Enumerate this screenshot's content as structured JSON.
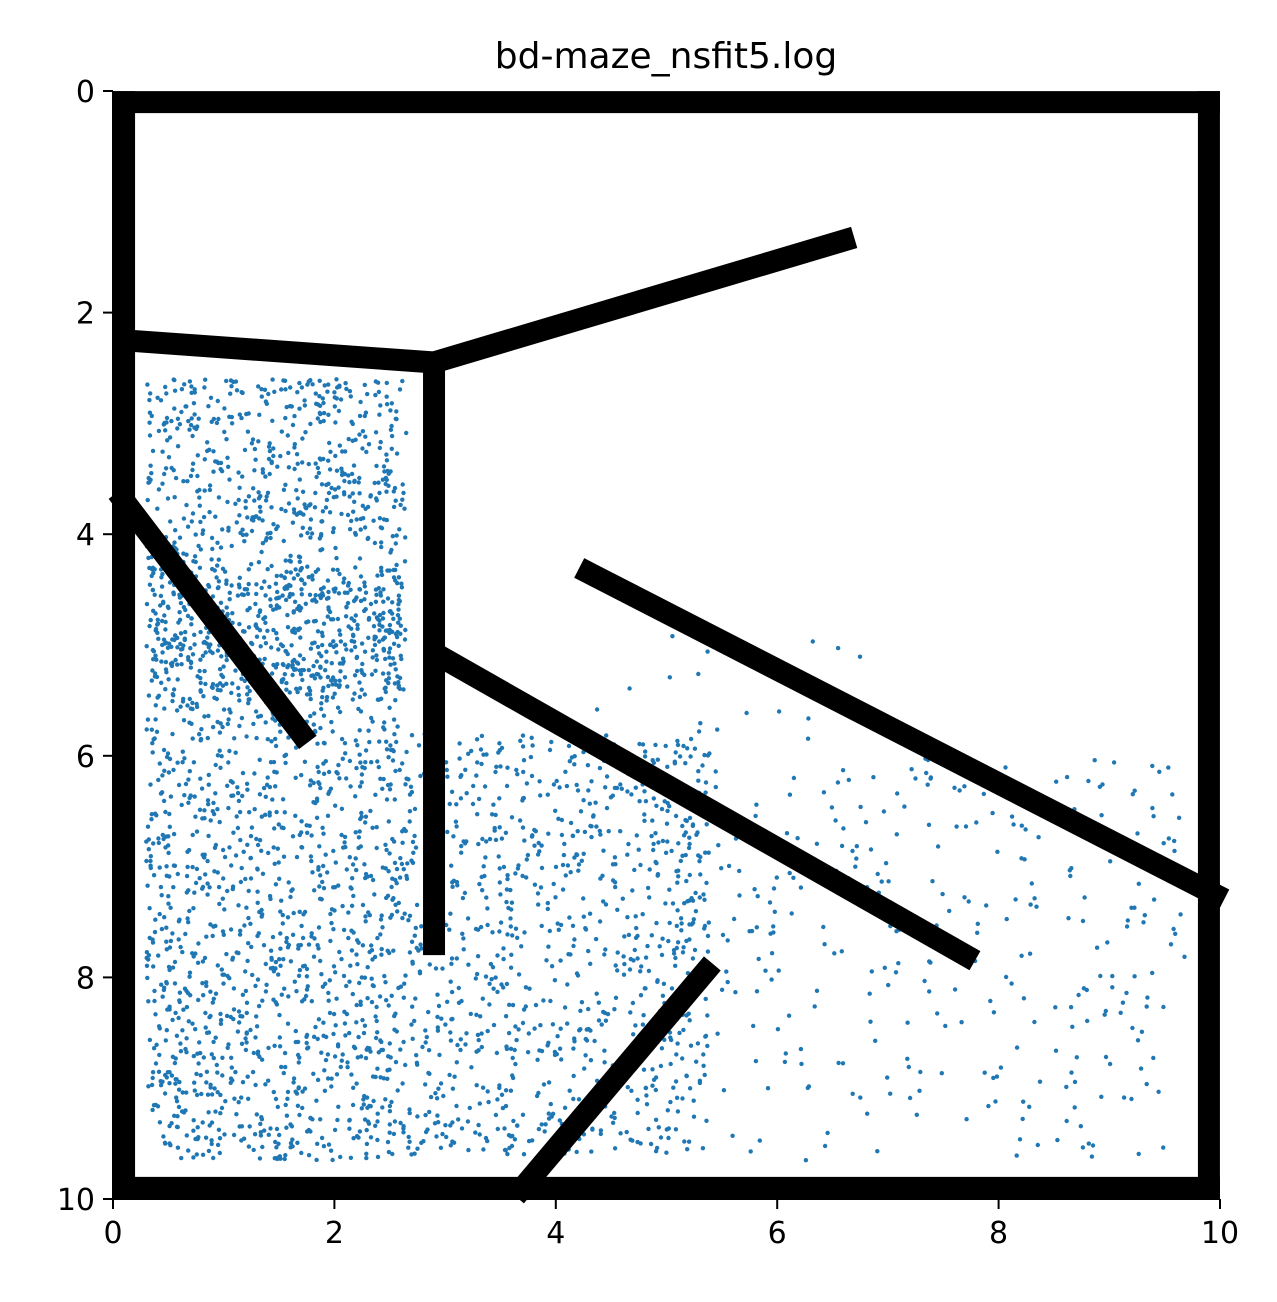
{
  "chart_data": {
    "type": "scatter",
    "title": "bd-maze_nsfit5.log",
    "xlabel": "",
    "ylabel": "",
    "xlim": [
      0,
      10
    ],
    "ylim": [
      10,
      0
    ],
    "y_inverted": true,
    "grid": false,
    "x_ticks": [
      "0",
      "2",
      "4",
      "6",
      "8",
      "10"
    ],
    "y_ticks": [
      "0",
      "2",
      "4",
      "6",
      "8",
      "10"
    ],
    "colors": {
      "points": "#1f77b4",
      "walls": "#000000"
    },
    "walls": [
      {
        "name": "border-top",
        "x": [
          0.1,
          9.9
        ],
        "y": [
          0.1,
          0.1
        ]
      },
      {
        "name": "border-bottom",
        "x": [
          0.1,
          9.9
        ],
        "y": [
          9.9,
          9.9
        ]
      },
      {
        "name": "border-left",
        "x": [
          0.1,
          0.1
        ],
        "y": [
          0.1,
          9.9
        ]
      },
      {
        "name": "border-right",
        "x": [
          9.9,
          9.9
        ],
        "y": [
          0.1,
          9.9
        ]
      },
      {
        "name": "wall-upper-left",
        "x": [
          0.1,
          2.9
        ],
        "y": [
          2.25,
          2.45
        ]
      },
      {
        "name": "wall-upper-diagonal",
        "x": [
          2.9,
          6.6
        ],
        "y": [
          2.45,
          1.35
        ]
      },
      {
        "name": "wall-vertical",
        "x": [
          2.9,
          2.9
        ],
        "y": [
          2.45,
          7.7
        ]
      },
      {
        "name": "wall-left-diagonal",
        "x": [
          0.1,
          1.7
        ],
        "y": [
          3.7,
          5.8
        ]
      },
      {
        "name": "wall-middle-diagonal",
        "x": [
          2.95,
          7.7
        ],
        "y": [
          5.1,
          7.8
        ]
      },
      {
        "name": "wall-right-diagonal",
        "x": [
          4.3,
          9.95
        ],
        "y": [
          4.35,
          7.25
        ]
      },
      {
        "name": "wall-bottom-diagonal",
        "x": [
          3.7,
          5.35
        ],
        "y": [
          9.9,
          7.95
        ]
      }
    ],
    "point_clusters": [
      {
        "region": "upper-left-room",
        "x": [
          0.3,
          2.65
        ],
        "y": [
          2.6,
          5.5
        ],
        "count": 900
      },
      {
        "region": "left-corridor",
        "x": [
          0.3,
          2.6
        ],
        "y": [
          4.3,
          9.65
        ],
        "count": 1500
      },
      {
        "region": "lower-middle",
        "x": [
          2.6,
          5.4
        ],
        "y": [
          5.8,
          9.6
        ],
        "count": 900
      },
      {
        "region": "lower-right",
        "x": [
          4.8,
          9.7
        ],
        "y": [
          6.0,
          9.65
        ],
        "count": 350
      },
      {
        "region": "upper-right-corridor",
        "x": [
          4.0,
          7.0
        ],
        "y": [
          4.9,
          6.0
        ],
        "count": 20
      }
    ]
  }
}
